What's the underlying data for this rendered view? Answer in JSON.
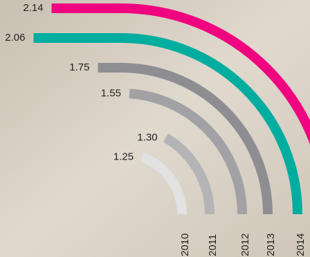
{
  "chart_data": {
    "type": "radial-bar",
    "categories": [
      "2010",
      "2011",
      "2012",
      "2013",
      "2014",
      null
    ],
    "values": [
      1.25,
      1.3,
      1.55,
      1.75,
      2.06,
      2.14
    ],
    "value_labels": [
      "1.25",
      "1.30",
      "1.55",
      "1.75",
      "2.06",
      "2.14"
    ],
    "colors": [
      "#e2e2e2",
      "#b4b4b6",
      "#a2a2a5",
      "#8e8e92",
      "#00ad9f",
      "#f0047f"
    ]
  }
}
